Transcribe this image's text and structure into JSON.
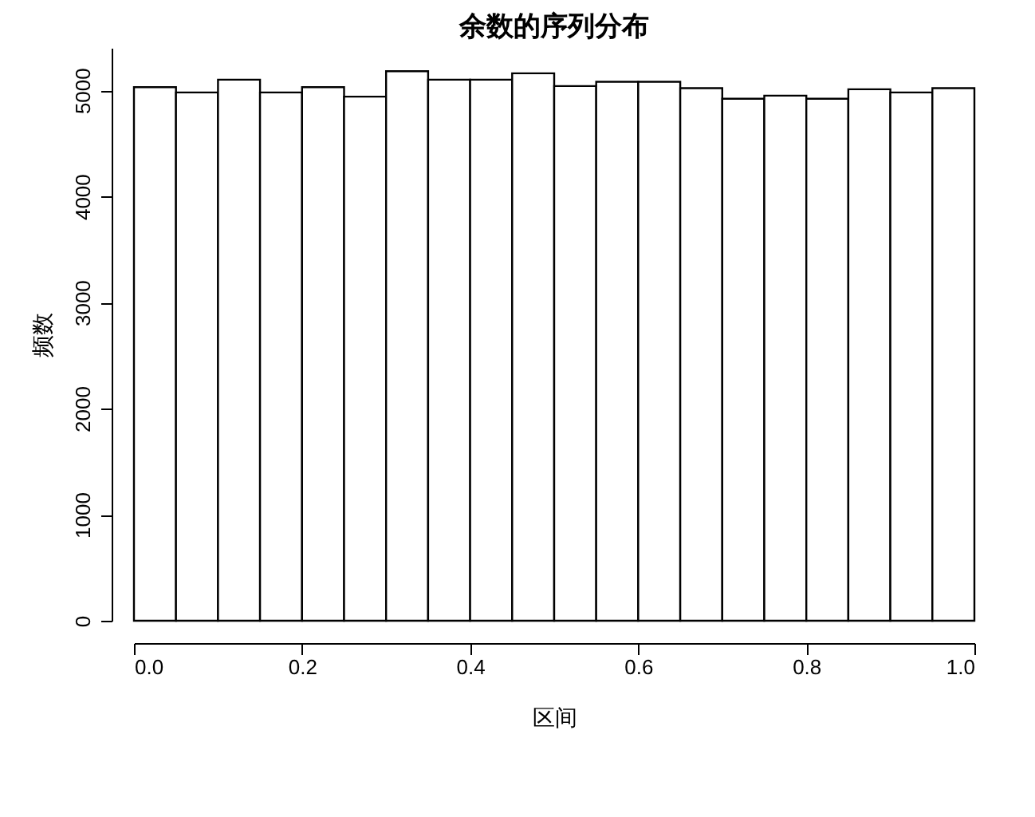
{
  "chart_data": {
    "type": "histogram",
    "title": "余数的序列分布",
    "xlabel": "区间",
    "ylabel": "频数",
    "bins": [
      0,
      0.05,
      0.1,
      0.15,
      0.2,
      0.25,
      0.3,
      0.35,
      0.4,
      0.45,
      0.5,
      0.55,
      0.6,
      0.65,
      0.7,
      0.75,
      0.8,
      0.85,
      0.9,
      0.95,
      1
    ],
    "values": [
      5030,
      4980,
      5100,
      4980,
      5030,
      4940,
      5180,
      5100,
      5100,
      5160,
      5040,
      5080,
      5080,
      5020,
      4920,
      4950,
      4920,
      5010,
      4980,
      5020
    ],
    "color": "#ffffff",
    "xlim": [
      0,
      1
    ],
    "xticks": [
      {
        "value": 0,
        "label": "0.0"
      },
      0.2,
      0.4,
      0.6,
      0.8,
      {
        "value": 1,
        "label": "1.0"
      }
    ],
    "ylim": [
      0,
      5400
    ],
    "yticks": [
      0,
      1000,
      2000,
      3000,
      4000,
      5000
    ],
    "grid": false
  }
}
